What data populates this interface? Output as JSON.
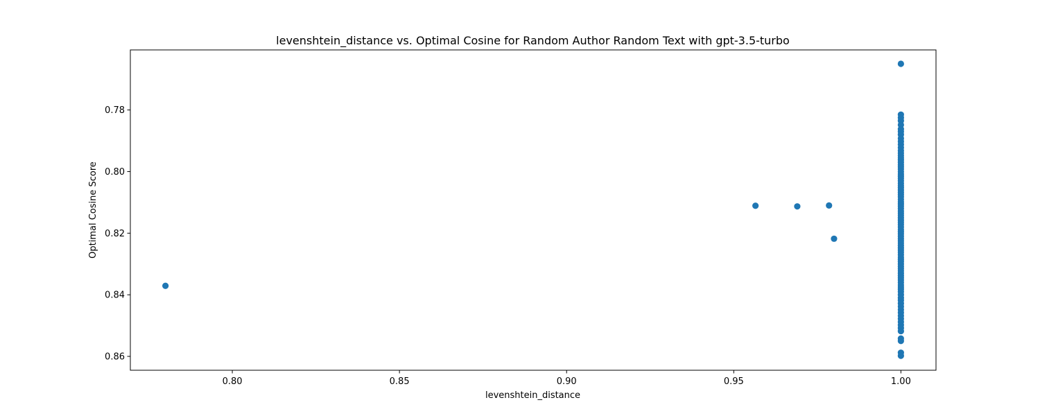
{
  "chart_data": {
    "type": "scatter",
    "title": "levenshtein_distance vs. Optimal Cosine for Random Author Random Text with gpt-3.5-turbo",
    "xlabel": "levenshtein_distance",
    "ylabel": "Optimal Cosine Score",
    "xlim": [
      0.7695,
      1.0105
    ],
    "ylim": [
      0.7605,
      0.8645
    ],
    "y_inverted": true,
    "x_ticks": [
      0.8,
      0.85,
      0.9,
      0.95,
      1.0
    ],
    "x_tick_labels": [
      "0.80",
      "0.85",
      "0.90",
      "0.95",
      "1.00"
    ],
    "y_ticks": [
      0.78,
      0.8,
      0.82,
      0.84,
      0.86
    ],
    "y_tick_labels": [
      "0.78",
      "0.80",
      "0.82",
      "0.84",
      "0.86"
    ],
    "grid": false,
    "marker_color": "#1f77b4",
    "series": [
      {
        "points": [
          [
            0.78,
            0.8371
          ],
          [
            0.9565,
            0.8111
          ],
          [
            0.969,
            0.8113
          ],
          [
            0.9785,
            0.811
          ],
          [
            0.98,
            0.8218
          ],
          [
            1.0,
            0.765
          ],
          [
            1.0,
            0.7815
          ],
          [
            1.0,
            0.7825
          ],
          [
            1.0,
            0.7835
          ],
          [
            1.0,
            0.7848
          ],
          [
            1.0,
            0.7862
          ],
          [
            1.0,
            0.787
          ],
          [
            1.0,
            0.788
          ],
          [
            1.0,
            0.7892
          ],
          [
            1.0,
            0.7902
          ],
          [
            1.0,
            0.7912
          ],
          [
            1.0,
            0.7922
          ],
          [
            1.0,
            0.7932
          ],
          [
            1.0,
            0.794
          ],
          [
            1.0,
            0.7948
          ],
          [
            1.0,
            0.7955
          ],
          [
            1.0,
            0.7962
          ],
          [
            1.0,
            0.797
          ],
          [
            1.0,
            0.7978
          ],
          [
            1.0,
            0.7985
          ],
          [
            1.0,
            0.7992
          ],
          [
            1.0,
            0.8
          ],
          [
            1.0,
            0.8008
          ],
          [
            1.0,
            0.8015
          ],
          [
            1.0,
            0.8022
          ],
          [
            1.0,
            0.803
          ],
          [
            1.0,
            0.8038
          ],
          [
            1.0,
            0.8045
          ],
          [
            1.0,
            0.8052
          ],
          [
            1.0,
            0.806
          ],
          [
            1.0,
            0.8068
          ],
          [
            1.0,
            0.8075
          ],
          [
            1.0,
            0.8082
          ],
          [
            1.0,
            0.809
          ],
          [
            1.0,
            0.8098
          ],
          [
            1.0,
            0.8105
          ],
          [
            1.0,
            0.8112
          ],
          [
            1.0,
            0.812
          ],
          [
            1.0,
            0.8128
          ],
          [
            1.0,
            0.8135
          ],
          [
            1.0,
            0.8142
          ],
          [
            1.0,
            0.815
          ],
          [
            1.0,
            0.8158
          ],
          [
            1.0,
            0.8165
          ],
          [
            1.0,
            0.8172
          ],
          [
            1.0,
            0.818
          ],
          [
            1.0,
            0.8188
          ],
          [
            1.0,
            0.8195
          ],
          [
            1.0,
            0.8202
          ],
          [
            1.0,
            0.821
          ],
          [
            1.0,
            0.8218
          ],
          [
            1.0,
            0.8225
          ],
          [
            1.0,
            0.8232
          ],
          [
            1.0,
            0.824
          ],
          [
            1.0,
            0.8248
          ],
          [
            1.0,
            0.8255
          ],
          [
            1.0,
            0.8262
          ],
          [
            1.0,
            0.827
          ],
          [
            1.0,
            0.8278
          ],
          [
            1.0,
            0.8285
          ],
          [
            1.0,
            0.8292
          ],
          [
            1.0,
            0.83
          ],
          [
            1.0,
            0.8308
          ],
          [
            1.0,
            0.8315
          ],
          [
            1.0,
            0.8322
          ],
          [
            1.0,
            0.833
          ],
          [
            1.0,
            0.8338
          ],
          [
            1.0,
            0.8345
          ],
          [
            1.0,
            0.8352
          ],
          [
            1.0,
            0.836
          ],
          [
            1.0,
            0.8368
          ],
          [
            1.0,
            0.8375
          ],
          [
            1.0,
            0.8382
          ],
          [
            1.0,
            0.839
          ],
          [
            1.0,
            0.84
          ],
          [
            1.0,
            0.841
          ],
          [
            1.0,
            0.8418
          ],
          [
            1.0,
            0.8428
          ],
          [
            1.0,
            0.8438
          ],
          [
            1.0,
            0.8448
          ],
          [
            1.0,
            0.8458
          ],
          [
            1.0,
            0.8468
          ],
          [
            1.0,
            0.8478
          ],
          [
            1.0,
            0.8488
          ],
          [
            1.0,
            0.8498
          ],
          [
            1.0,
            0.8508
          ],
          [
            1.0,
            0.8518
          ],
          [
            1.0,
            0.8542
          ],
          [
            1.0,
            0.855
          ],
          [
            1.0,
            0.8588
          ],
          [
            1.0,
            0.8598
          ]
        ]
      }
    ]
  }
}
